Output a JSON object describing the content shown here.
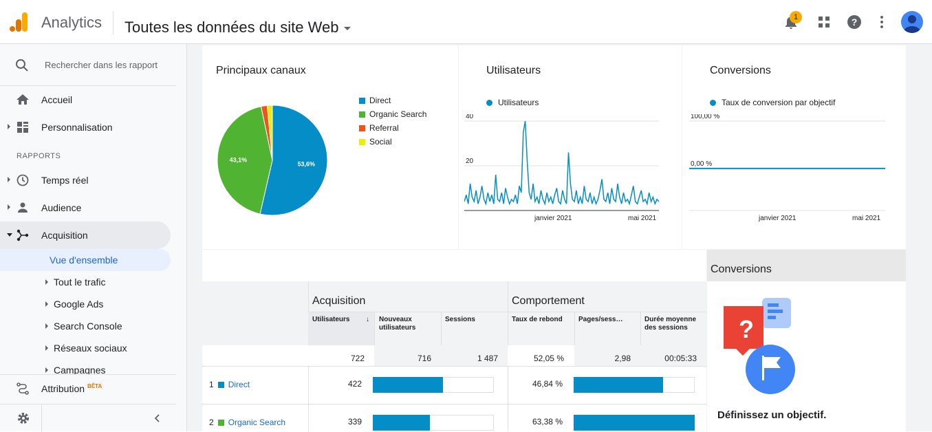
{
  "header": {
    "app_name": "Analytics",
    "property_selector": "Toutes les données du site Web",
    "notification_count": "1"
  },
  "sidebar": {
    "search_placeholder": "Rechercher dans les rapport",
    "home": "Accueil",
    "customization": "Personnalisation",
    "reports_section": "RAPPORTS",
    "realtime": "Temps réel",
    "audience": "Audience",
    "acquisition": "Acquisition",
    "acquisition_sub": [
      "Vue d'ensemble",
      "Tout le trafic",
      "Google Ads",
      "Search Console",
      "Réseaux sociaux",
      "Campagnes"
    ],
    "attribution": "Attribution",
    "beta": "BÊTA"
  },
  "cards": {
    "channels": {
      "title": "Principaux canaux",
      "legend": [
        "Direct",
        "Organic Search",
        "Referral",
        "Social"
      ],
      "colors": [
        "#058dc7",
        "#50b432",
        "#ed561b",
        "#edef00"
      ]
    },
    "users": {
      "title": "Utilisateurs",
      "legend": "Utilisateurs",
      "y_ticks": [
        "40",
        "20"
      ],
      "x_ticks": [
        "janvier 2021",
        "mai 2021"
      ]
    },
    "conversions": {
      "title": "Conversions",
      "legend": "Taux de conversion par objectif",
      "y_ticks": [
        "100,00 %",
        "0,00 %"
      ],
      "x_ticks": [
        "janvier 2021",
        "mai 2021"
      ]
    }
  },
  "chart_data": [
    {
      "type": "pie",
      "title": "Principaux canaux",
      "categories": [
        "Direct",
        "Organic Search",
        "Referral",
        "Social"
      ],
      "values": [
        53.6,
        43.1,
        1.8,
        1.5
      ],
      "labels": [
        "53,6%",
        "43,1%",
        "",
        ""
      ]
    },
    {
      "type": "line",
      "title": "Utilisateurs",
      "series": [
        {
          "name": "Utilisateurs",
          "values": [
            4,
            7,
            3,
            12,
            6,
            4,
            9,
            3,
            6,
            11,
            5,
            3,
            8,
            4,
            7,
            3,
            16,
            5,
            4,
            8,
            3,
            10,
            6,
            3,
            5,
            4,
            7,
            3,
            11,
            8,
            35,
            40,
            22,
            8,
            5,
            12,
            4,
            6,
            3,
            9,
            5,
            3,
            8,
            4,
            6,
            3,
            7,
            10,
            4,
            3,
            9,
            5,
            3,
            26,
            12,
            5,
            4,
            9,
            3,
            6,
            3,
            11,
            5,
            4,
            8,
            3,
            6,
            3,
            5,
            9,
            14,
            5,
            4,
            8,
            3,
            10,
            5,
            4,
            12,
            6,
            3,
            8,
            4,
            5,
            3,
            7,
            11,
            4,
            3,
            6,
            9,
            4,
            5,
            3,
            8,
            4,
            6,
            3,
            5,
            4
          ]
        }
      ],
      "y_ticks": [
        20,
        40
      ],
      "x_tick_labels": [
        "janvier 2021",
        "mai 2021"
      ],
      "ylim": [
        0,
        40
      ]
    },
    {
      "type": "line",
      "title": "Conversions",
      "series": [
        {
          "name": "Taux de conversion par objectif",
          "values": [
            0,
            0,
            0,
            0,
            0,
            0,
            0,
            0,
            0,
            0
          ]
        }
      ],
      "y_tick_labels": [
        "100,00 %",
        "0,00 %"
      ],
      "x_tick_labels": [
        "janvier 2021",
        "mai 2021"
      ],
      "ylim": [
        0,
        100
      ]
    }
  ],
  "table": {
    "group_acquisition": "Acquisition",
    "group_behavior": "Comportement",
    "group_conversions": "Conversions",
    "col_users": "Utilisateurs",
    "col_new_users": "Nouveaux utilisateurs",
    "col_sessions": "Sessions",
    "col_bounce": "Taux de rebond",
    "col_pages": "Pages/sess…",
    "col_duration": "Durée moyenne des sessions",
    "totals": {
      "users": "722",
      "new_users": "716",
      "sessions": "1 487",
      "bounce": "52,05 %",
      "pages": "2,98",
      "duration": "00:05:33"
    },
    "rows": [
      {
        "index": "1",
        "name": "Direct",
        "color": "#058dc7",
        "users": "422",
        "new_users_share": 0.58,
        "bounce": "46,84 %",
        "bounce_share": 0.74
      },
      {
        "index": "2",
        "name": "Organic Search",
        "color": "#50b432",
        "users": "339",
        "new_users_share": 0.47,
        "bounce": "63,38 %",
        "bounce_share": 1.0
      }
    ],
    "goal_cta": "Définissez un objectif."
  }
}
